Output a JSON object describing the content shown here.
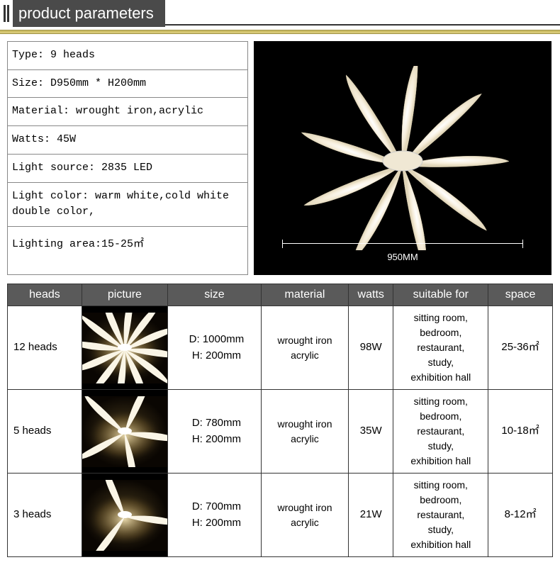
{
  "header": {
    "title": "product parameters"
  },
  "specs": {
    "rows": [
      "Type: 9 heads",
      "Size: D950mm * H200mm",
      "Material: wrought iron,acrylic",
      "Watts: 45W",
      "Light source: 2835 LED",
      "Light color: warm white,cold white\n            double color,",
      "Lighting area:15-25㎡"
    ]
  },
  "product_image": {
    "dimension_label": "950MM",
    "background_color": "#000000",
    "petal_fill": "#f5ecd8",
    "petal_highlight": "#ffffff",
    "center_color": "#e8e0d0"
  },
  "variants": {
    "headers": [
      "heads",
      "picture",
      "size",
      "material",
      "watts",
      "suitable for",
      "space"
    ],
    "header_bg": "#5a5a5a",
    "header_color": "#ffffff",
    "border_color": "#333333",
    "rows": [
      {
        "heads": "12 heads",
        "size": "D: 1000mm\nH: 200mm",
        "material": "wrought iron\nacrylic",
        "watts": "98W",
        "suitable": "sitting room,\nbedroom,\nrestaurant,\nstudy,\nexhibition hall",
        "space": "25-36㎡",
        "thumb_petals": 12
      },
      {
        "heads": "5 heads",
        "size": "D: 780mm\nH: 200mm",
        "material": "wrought iron\nacrylic",
        "watts": "35W",
        "suitable": "sitting room,\nbedroom,\nrestaurant,\nstudy,\nexhibition hall",
        "space": "10-18㎡",
        "thumb_petals": 5
      },
      {
        "heads": "3 heads",
        "size": "D: 700mm\nH: 200mm",
        "material": "wrought iron\nacrylic",
        "watts": "21W",
        "suitable": "sitting room,\nbedroom,\nrestaurant,\nstudy,\nexhibition hall",
        "space": "8-12㎡",
        "thumb_petals": 3
      }
    ],
    "thumb_bg_gradient": [
      "#1a1208",
      "#3a2e18"
    ],
    "thumb_glow": "#f5e6b8",
    "thumb_petal": "#faf5e6"
  }
}
